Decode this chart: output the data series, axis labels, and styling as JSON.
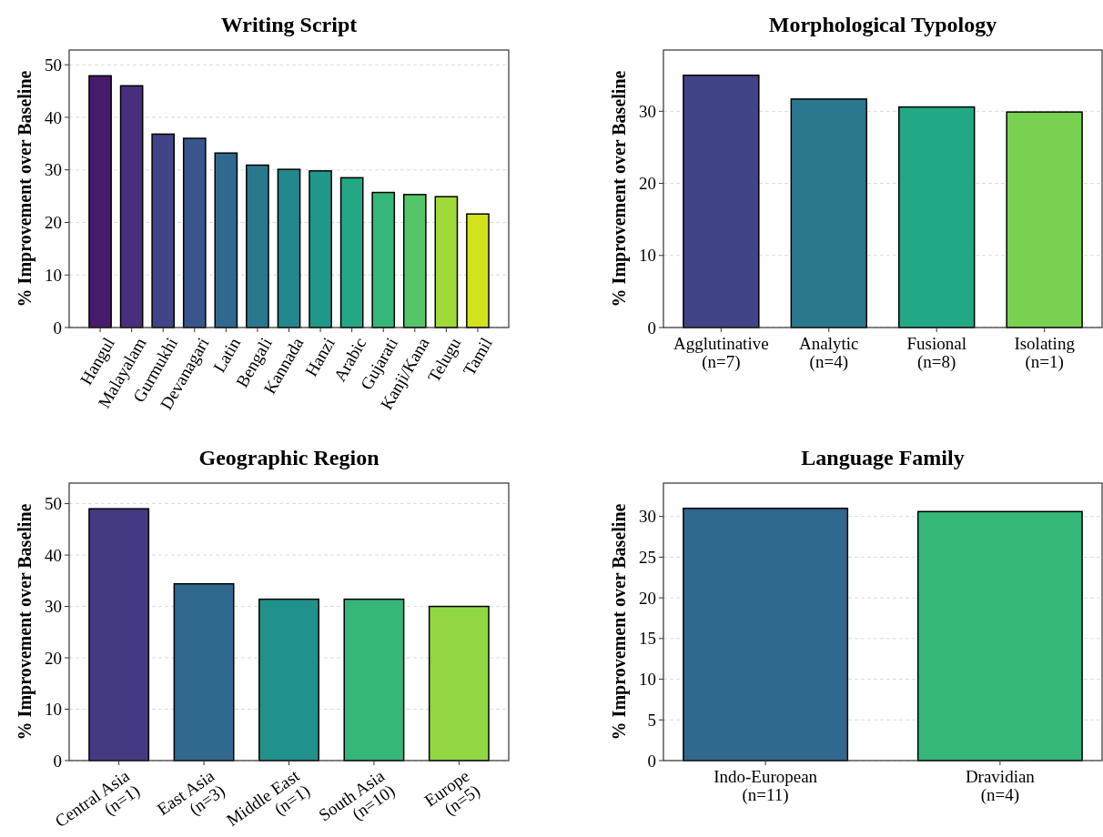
{
  "chart_data": [
    {
      "type": "bar",
      "title": "Writing Script",
      "ylabel": "% Improvement over Baseline",
      "categories": [
        "Hangul",
        "Malayalam",
        "Gurmukhi",
        "Devanagari",
        "Latin",
        "Bengali",
        "Kannada",
        "Hanzi",
        "Arabic",
        "Gujarati",
        "Kanji/Kana",
        "Telugu",
        "Tamil"
      ],
      "values": [
        47.9,
        46.0,
        36.8,
        36.0,
        33.2,
        30.9,
        30.1,
        29.8,
        28.5,
        25.7,
        25.3,
        24.9,
        21.6
      ],
      "colors": [
        "#481a6c",
        "#472f7d",
        "#414487",
        "#39568c",
        "#31688e",
        "#2a788e",
        "#23888e",
        "#1f988b",
        "#22a884",
        "#35b779",
        "#54c568",
        "#a0da39",
        "#d2e21b"
      ],
      "ylim": [
        0,
        52.8
      ],
      "yticks": [
        0,
        10,
        20,
        30,
        40,
        50
      ],
      "grid": "y"
    },
    {
      "type": "bar",
      "title": "Morphological Typology",
      "ylabel": "% Improvement over Baseline",
      "categories": [
        "Agglutinative\n(n=7)",
        "Analytic\n(n=4)",
        "Fusional\n(n=8)",
        "Isolating\n(n=1)"
      ],
      "values": [
        35.0,
        31.7,
        30.6,
        29.9
      ],
      "colors": [
        "#414487",
        "#2a788e",
        "#22a884",
        "#7ad151"
      ],
      "ylim": [
        0,
        38.5
      ],
      "yticks": [
        0,
        10,
        20,
        30
      ],
      "grid": "y"
    },
    {
      "type": "bar",
      "title": "Geographic Region",
      "ylabel": "% Improvement over Baseline",
      "categories": [
        "Central Asia\n(n=1)",
        "East Asia\n(n=3)",
        "Middle East\n(n=1)",
        "South Asia\n(n=10)",
        "Europe\n(n=5)"
      ],
      "values": [
        49.0,
        34.4,
        31.4,
        31.4,
        30.0
      ],
      "colors": [
        "#443983",
        "#31688e",
        "#21918c",
        "#35b779",
        "#90d743"
      ],
      "ylim": [
        0,
        54.0
      ],
      "yticks": [
        0,
        10,
        20,
        30,
        40,
        50
      ],
      "grid": "y"
    },
    {
      "type": "bar",
      "title": "Language Family",
      "ylabel": "% Improvement over Baseline",
      "categories": [
        "Indo-European\n(n=11)",
        "Dravidian\n(n=4)"
      ],
      "values": [
        31.0,
        30.6
      ],
      "colors": [
        "#31688e",
        "#35b779"
      ],
      "ylim": [
        0,
        34.1
      ],
      "yticks": [
        0,
        5,
        10,
        15,
        20,
        25,
        30
      ],
      "grid": "y"
    }
  ]
}
